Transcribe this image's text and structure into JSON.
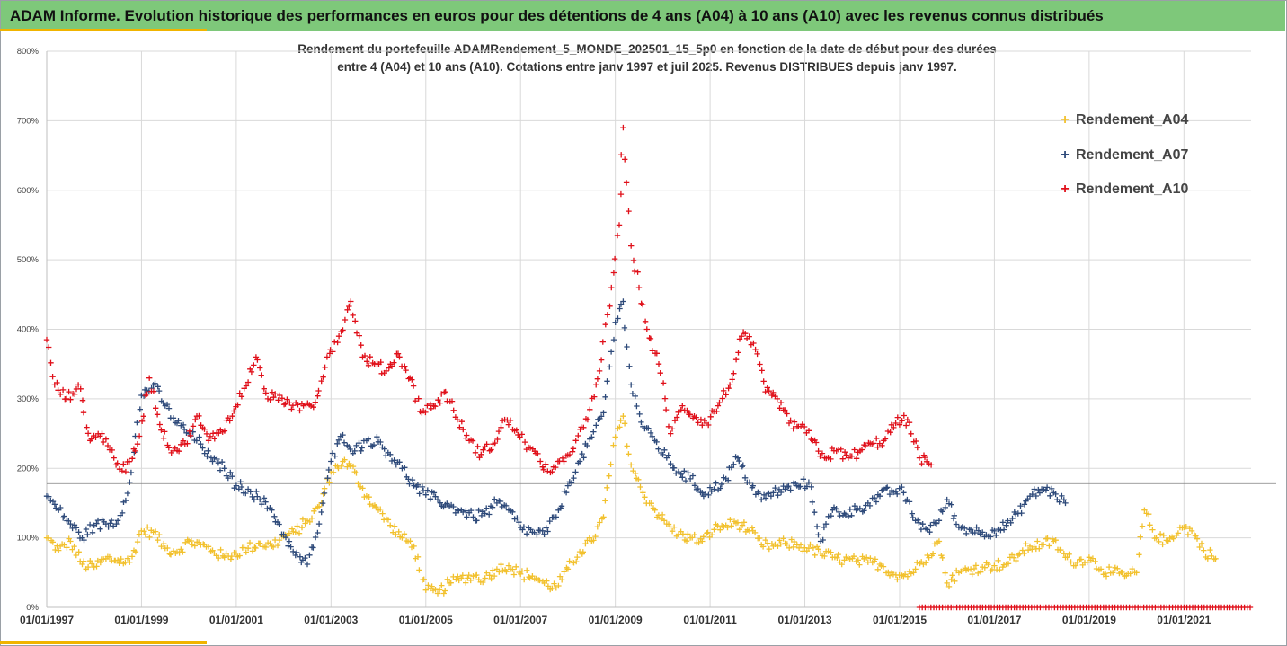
{
  "header": {
    "title": "ADAM Informe. Evolution historique des performances en euros pour des détentions de 4 ans (A04) à 10 ans (A10) avec les revenus connus distribués"
  },
  "colors": {
    "header_bg": "#7ec87a",
    "accent": "#f0b400",
    "A04": "#f2c12e",
    "A07": "#2e4a7a",
    "A10": "#e0101a"
  },
  "chart_data": {
    "type": "scatter",
    "title_line1": "Rendement du portefeuille ADAMRendement_5_MONDE_202501_15_5p0 en fonction de la date de début pour des durées",
    "title_line2": "entre 4 (A04) et 10 ans (A10). Cotations entre janv 1997 et juil 2025. Revenus DISTRIBUES depuis janv 1997.",
    "xlabel": "",
    "ylabel": "",
    "marker": "+",
    "x_range": [
      "1997-01-01",
      "2022-06-01"
    ],
    "y_range": [
      0,
      800
    ],
    "y_unit": "%",
    "y_ticks": [
      "0%",
      "100%",
      "200%",
      "300%",
      "400%",
      "500%",
      "600%",
      "700%",
      "800%"
    ],
    "x_ticks": [
      "01/01/1997",
      "01/01/1999",
      "01/01/2001",
      "01/01/2003",
      "01/01/2005",
      "01/01/2007",
      "01/01/2009",
      "01/01/2011",
      "01/01/2013",
      "01/01/2015",
      "01/01/2017",
      "01/01/2019",
      "01/01/2021"
    ],
    "grid": true,
    "reference_line_y": 178,
    "legend_position": "top-right",
    "series": [
      {
        "name": "Rendement_A04",
        "color": "#f2c12e",
        "points": [
          [
            "1997-01",
            100
          ],
          [
            "1997-04",
            82
          ],
          [
            "1997-07",
            95
          ],
          [
            "1997-10",
            62
          ],
          [
            "1998-01",
            58
          ],
          [
            "1998-04",
            70
          ],
          [
            "1998-07",
            68
          ],
          [
            "1998-10",
            65
          ],
          [
            "1999-01",
            110
          ],
          [
            "1999-04",
            108
          ],
          [
            "1999-07",
            85
          ],
          [
            "1999-10",
            80
          ],
          [
            "2000-01",
            95
          ],
          [
            "2000-04",
            90
          ],
          [
            "2000-07",
            82
          ],
          [
            "2000-10",
            72
          ],
          [
            "2001-01",
            78
          ],
          [
            "2001-04",
            85
          ],
          [
            "2001-07",
            92
          ],
          [
            "2001-10",
            88
          ],
          [
            "2002-01",
            102
          ],
          [
            "2002-04",
            108
          ],
          [
            "2002-07",
            125
          ],
          [
            "2002-10",
            145
          ],
          [
            "2003-01",
            195
          ],
          [
            "2003-04",
            210
          ],
          [
            "2003-07",
            195
          ],
          [
            "2003-10",
            160
          ],
          [
            "2004-01",
            140
          ],
          [
            "2004-04",
            118
          ],
          [
            "2004-07",
            100
          ],
          [
            "2004-10",
            88
          ],
          [
            "2005-01",
            25
          ],
          [
            "2005-04",
            20
          ],
          [
            "2005-07",
            35
          ],
          [
            "2005-10",
            42
          ],
          [
            "2006-01",
            45
          ],
          [
            "2006-04",
            42
          ],
          [
            "2006-07",
            55
          ],
          [
            "2006-10",
            60
          ],
          [
            "2007-01",
            48
          ],
          [
            "2007-04",
            45
          ],
          [
            "2007-07",
            35
          ],
          [
            "2007-10",
            28
          ],
          [
            "2008-01",
            55
          ],
          [
            "2008-04",
            80
          ],
          [
            "2008-07",
            95
          ],
          [
            "2008-10",
            130
          ],
          [
            "2009-01",
            245
          ],
          [
            "2009-03",
            275
          ],
          [
            "2009-05",
            205
          ],
          [
            "2009-08",
            165
          ],
          [
            "2009-11",
            140
          ],
          [
            "2010-02",
            120
          ],
          [
            "2010-05",
            105
          ],
          [
            "2010-08",
            100
          ],
          [
            "2010-11",
            95
          ],
          [
            "2011-02",
            112
          ],
          [
            "2011-05",
            118
          ],
          [
            "2011-08",
            122
          ],
          [
            "2011-11",
            110
          ],
          [
            "2012-02",
            90
          ],
          [
            "2012-05",
            88
          ],
          [
            "2012-08",
            92
          ],
          [
            "2012-11",
            90
          ],
          [
            "2013-02",
            85
          ],
          [
            "2013-05",
            78
          ],
          [
            "2013-08",
            72
          ],
          [
            "2013-11",
            68
          ],
          [
            "2014-02",
            66
          ],
          [
            "2014-05",
            65
          ],
          [
            "2014-08",
            62
          ],
          [
            "2014-11",
            50
          ],
          [
            "2015-02",
            45
          ],
          [
            "2015-05",
            55
          ],
          [
            "2015-08",
            75
          ],
          [
            "2015-11",
            95
          ],
          [
            "2016-01",
            35
          ],
          [
            "2016-04",
            50
          ],
          [
            "2016-07",
            55
          ],
          [
            "2016-10",
            58
          ],
          [
            "2017-01",
            60
          ],
          [
            "2017-04",
            62
          ],
          [
            "2017-07",
            75
          ],
          [
            "2017-10",
            88
          ],
          [
            "2018-01",
            90
          ],
          [
            "2018-04",
            95
          ],
          [
            "2018-07",
            72
          ],
          [
            "2018-10",
            65
          ],
          [
            "2019-01",
            72
          ],
          [
            "2019-04",
            55
          ],
          [
            "2019-07",
            50
          ],
          [
            "2019-10",
            45
          ],
          [
            "2020-01",
            50
          ],
          [
            "2020-03",
            140
          ],
          [
            "2020-06",
            100
          ],
          [
            "2020-09",
            95
          ],
          [
            "2020-12",
            115
          ],
          [
            "2021-03",
            110
          ],
          [
            "2021-06",
            82
          ],
          [
            "2021-09",
            70
          ]
        ]
      },
      {
        "name": "Rendement_A07",
        "color": "#2e4a7a",
        "points": [
          [
            "1997-01",
            160
          ],
          [
            "1997-04",
            140
          ],
          [
            "1997-07",
            120
          ],
          [
            "1997-10",
            100
          ],
          [
            "1998-01",
            118
          ],
          [
            "1998-04",
            120
          ],
          [
            "1998-07",
            125
          ],
          [
            "1998-10",
            180
          ],
          [
            "1999-01",
            305
          ],
          [
            "1999-04",
            320
          ],
          [
            "1999-07",
            290
          ],
          [
            "1999-10",
            265
          ],
          [
            "2000-01",
            250
          ],
          [
            "2000-04",
            235
          ],
          [
            "2000-07",
            210
          ],
          [
            "2000-10",
            200
          ],
          [
            "2001-01",
            175
          ],
          [
            "2001-04",
            170
          ],
          [
            "2001-07",
            155
          ],
          [
            "2001-10",
            140
          ],
          [
            "2002-01",
            105
          ],
          [
            "2002-04",
            75
          ],
          [
            "2002-07",
            62
          ],
          [
            "2002-10",
            120
          ],
          [
            "2003-01",
            210
          ],
          [
            "2003-04",
            248
          ],
          [
            "2003-07",
            225
          ],
          [
            "2003-10",
            240
          ],
          [
            "2004-01",
            238
          ],
          [
            "2004-04",
            220
          ],
          [
            "2004-07",
            200
          ],
          [
            "2004-10",
            175
          ],
          [
            "2005-01",
            162
          ],
          [
            "2005-04",
            155
          ],
          [
            "2005-07",
            145
          ],
          [
            "2005-10",
            140
          ],
          [
            "2006-01",
            130
          ],
          [
            "2006-04",
            135
          ],
          [
            "2006-07",
            150
          ],
          [
            "2006-10",
            140
          ],
          [
            "2007-01",
            115
          ],
          [
            "2007-04",
            108
          ],
          [
            "2007-07",
            105
          ],
          [
            "2007-10",
            130
          ],
          [
            "2008-01",
            175
          ],
          [
            "2008-04",
            210
          ],
          [
            "2008-07",
            245
          ],
          [
            "2008-10",
            280
          ],
          [
            "2009-01",
            410
          ],
          [
            "2009-03",
            440
          ],
          [
            "2009-05",
            320
          ],
          [
            "2009-08",
            260
          ],
          [
            "2009-11",
            240
          ],
          [
            "2010-02",
            215
          ],
          [
            "2010-05",
            195
          ],
          [
            "2010-08",
            185
          ],
          [
            "2010-11",
            165
          ],
          [
            "2011-02",
            170
          ],
          [
            "2011-05",
            185
          ],
          [
            "2011-08",
            215
          ],
          [
            "2011-11",
            180
          ],
          [
            "2012-02",
            155
          ],
          [
            "2012-05",
            165
          ],
          [
            "2012-08",
            170
          ],
          [
            "2012-11",
            175
          ],
          [
            "2013-02",
            180
          ],
          [
            "2013-05",
            95
          ],
          [
            "2013-08",
            140
          ],
          [
            "2013-11",
            135
          ],
          [
            "2014-02",
            140
          ],
          [
            "2014-05",
            150
          ],
          [
            "2014-08",
            160
          ],
          [
            "2014-11",
            168
          ],
          [
            "2015-02",
            165
          ],
          [
            "2015-05",
            125
          ],
          [
            "2015-08",
            112
          ],
          [
            "2015-11",
            125
          ],
          [
            "2016-01",
            155
          ],
          [
            "2016-04",
            115
          ],
          [
            "2016-07",
            112
          ],
          [
            "2016-10",
            108
          ],
          [
            "2017-01",
            110
          ],
          [
            "2017-04",
            118
          ],
          [
            "2017-07",
            135
          ],
          [
            "2017-10",
            160
          ],
          [
            "2018-01",
            170
          ],
          [
            "2018-04",
            165
          ],
          [
            "2018-07",
            150
          ]
        ]
      },
      {
        "name": "Rendement_A10",
        "color": "#e0101a",
        "points": [
          [
            "1997-01",
            385
          ],
          [
            "1997-03",
            320
          ],
          [
            "1997-06",
            300
          ],
          [
            "1997-09",
            320
          ],
          [
            "1997-12",
            240
          ],
          [
            "1998-03",
            250
          ],
          [
            "1998-06",
            215
          ],
          [
            "1998-09",
            195
          ],
          [
            "1998-12",
            235
          ],
          [
            "1999-03",
            330
          ],
          [
            "1999-06",
            255
          ],
          [
            "1999-09",
            225
          ],
          [
            "1999-12",
            235
          ],
          [
            "2000-03",
            275
          ],
          [
            "2000-06",
            240
          ],
          [
            "2000-09",
            255
          ],
          [
            "2000-12",
            275
          ],
          [
            "2001-03",
            315
          ],
          [
            "2001-06",
            360
          ],
          [
            "2001-09",
            300
          ],
          [
            "2001-12",
            305
          ],
          [
            "2002-03",
            285
          ],
          [
            "2002-06",
            290
          ],
          [
            "2002-09",
            295
          ],
          [
            "2002-12",
            360
          ],
          [
            "2003-03",
            390
          ],
          [
            "2003-06",
            440
          ],
          [
            "2003-09",
            360
          ],
          [
            "2003-12",
            350
          ],
          [
            "2004-03",
            340
          ],
          [
            "2004-06",
            365
          ],
          [
            "2004-09",
            330
          ],
          [
            "2004-12",
            280
          ],
          [
            "2005-03",
            290
          ],
          [
            "2005-06",
            310
          ],
          [
            "2005-09",
            270
          ],
          [
            "2005-12",
            240
          ],
          [
            "2006-03",
            220
          ],
          [
            "2006-06",
            235
          ],
          [
            "2006-09",
            270
          ],
          [
            "2006-12",
            255
          ],
          [
            "2007-03",
            230
          ],
          [
            "2007-06",
            210
          ],
          [
            "2007-09",
            195
          ],
          [
            "2007-12",
            210
          ],
          [
            "2008-03",
            240
          ],
          [
            "2008-06",
            270
          ],
          [
            "2008-09",
            340
          ],
          [
            "2008-12",
            460
          ],
          [
            "2009-02",
            550
          ],
          [
            "2009-03",
            690
          ],
          [
            "2009-05",
            520
          ],
          [
            "2009-07",
            460
          ],
          [
            "2009-09",
            400
          ],
          [
            "2009-12",
            350
          ],
          [
            "2010-03",
            250
          ],
          [
            "2010-06",
            290
          ],
          [
            "2010-09",
            275
          ],
          [
            "2010-12",
            265
          ],
          [
            "2011-03",
            290
          ],
          [
            "2011-06",
            320
          ],
          [
            "2011-09",
            390
          ],
          [
            "2011-12",
            380
          ],
          [
            "2012-03",
            310
          ],
          [
            "2012-06",
            300
          ],
          [
            "2012-09",
            265
          ],
          [
            "2012-12",
            260
          ],
          [
            "2013-03",
            240
          ],
          [
            "2013-06",
            215
          ],
          [
            "2013-09",
            225
          ],
          [
            "2013-12",
            215
          ],
          [
            "2014-03",
            225
          ],
          [
            "2014-06",
            235
          ],
          [
            "2014-09",
            240
          ],
          [
            "2014-12",
            265
          ],
          [
            "2015-03",
            270
          ],
          [
            "2015-06",
            215
          ],
          [
            "2015-09",
            205
          ]
        ]
      }
    ],
    "zero_strip": {
      "series": "Rendement_A10",
      "from": "2015-06",
      "to": "2022-06",
      "value": 0
    }
  }
}
